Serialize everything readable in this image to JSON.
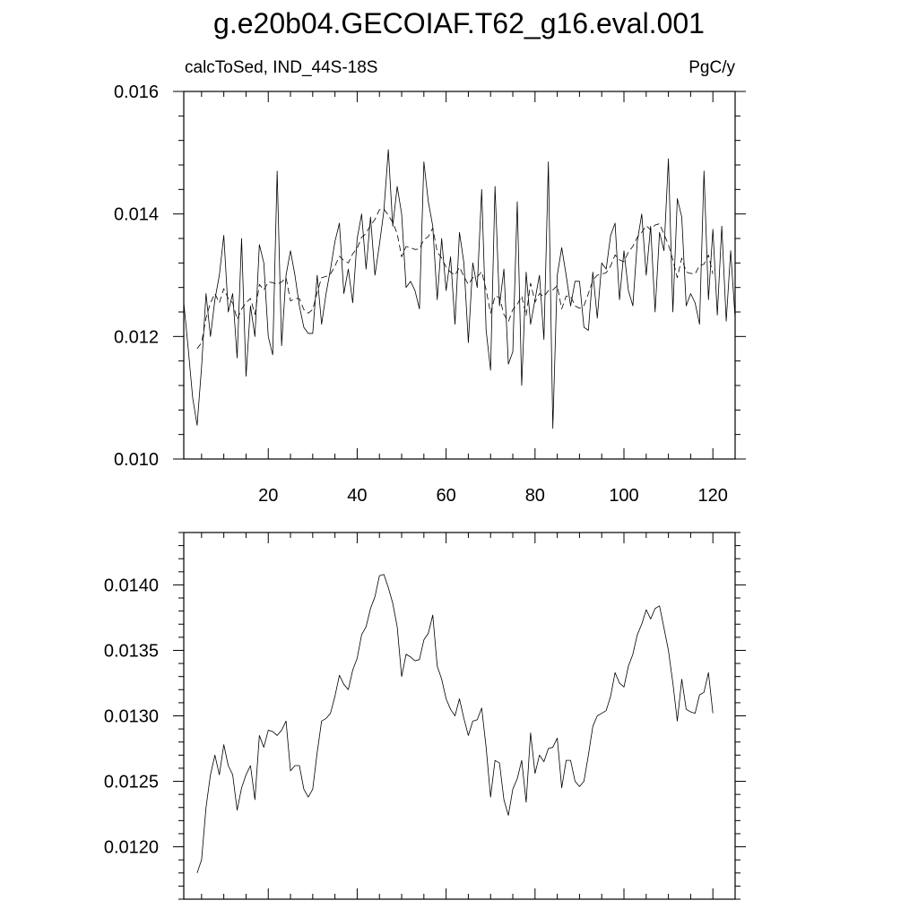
{
  "title": "g.e20b04.GECOIAF.T62_g16.eval.001",
  "subtitle_left": "calcToSed, IND_44S-18S",
  "subtitle_right": "PgC/y",
  "chart_data": [
    {
      "type": "line",
      "xlim": [
        1,
        125
      ],
      "ylim": [
        0.01,
        0.016
      ],
      "x_ticks": [
        20,
        40,
        60,
        80,
        100,
        120
      ],
      "x_tick_labels": [
        "20",
        "40",
        "60",
        "80",
        "100",
        "120"
      ],
      "y_ticks": [
        0.01,
        0.012,
        0.014,
        0.016
      ],
      "y_tick_labels": [
        "0.010",
        "0.012",
        "0.014",
        "0.016"
      ],
      "grid": false,
      "series": [
        {
          "style": "solid",
          "x_start": 1,
          "values": [
            0.01255,
            0.0118,
            0.011,
            0.01055,
            0.0115,
            0.0127,
            0.012,
            0.0126,
            0.013,
            0.01365,
            0.0124,
            0.0127,
            0.01165,
            0.0136,
            0.01135,
            0.0125,
            0.012,
            0.0135,
            0.0132,
            0.012,
            0.0117,
            0.0147,
            0.01185,
            0.013,
            0.0134,
            0.013,
            0.0125,
            0.01215,
            0.01205,
            0.01205,
            0.013,
            0.0122,
            0.0127,
            0.0131,
            0.01355,
            0.01385,
            0.0127,
            0.0131,
            0.01255,
            0.0136,
            0.014,
            0.0131,
            0.01395,
            0.013,
            0.0135,
            0.01405,
            0.01505,
            0.0138,
            0.01445,
            0.014,
            0.0128,
            0.0129,
            0.01275,
            0.01245,
            0.01485,
            0.0142,
            0.0138,
            0.0126,
            0.0136,
            0.01275,
            0.0133,
            0.0122,
            0.0137,
            0.0132,
            0.0119,
            0.0132,
            0.0128,
            0.0144,
            0.0121,
            0.01145,
            0.01445,
            0.0125,
            0.0131,
            0.01155,
            0.01175,
            0.0142,
            0.0112,
            0.01305,
            0.0122,
            0.0126,
            0.013,
            0.01195,
            0.01485,
            0.0105,
            0.013,
            0.01345,
            0.013,
            0.0125,
            0.0129,
            0.0129,
            0.01215,
            0.0121,
            0.01305,
            0.0123,
            0.0132,
            0.0131,
            0.01365,
            0.01385,
            0.0126,
            0.0134,
            0.01275,
            0.0125,
            0.01355,
            0.014,
            0.013,
            0.0138,
            0.0124,
            0.0137,
            0.0134,
            0.0149,
            0.0124,
            0.01425,
            0.01395,
            0.0125,
            0.0127,
            0.01255,
            0.0122,
            0.0147,
            0.0126,
            0.01375,
            0.01235,
            0.0138,
            0.01225,
            0.0134,
            0.0123
          ]
        },
        {
          "style": "dashed",
          "x_start": 4,
          "values": [
            0.0118,
            0.0119,
            0.0123,
            0.01255,
            0.0127,
            0.01255,
            0.01278,
            0.01262,
            0.01255,
            0.01228,
            0.01245,
            0.01255,
            0.01262,
            0.01236,
            0.01285,
            0.01276,
            0.01289,
            0.01288,
            0.01285,
            0.01289,
            0.01296,
            0.01258,
            0.01262,
            0.01262,
            0.01244,
            0.01238,
            0.01244,
            0.01272,
            0.01296,
            0.01298,
            0.01302,
            0.01315,
            0.01331,
            0.01324,
            0.0132,
            0.01335,
            0.01344,
            0.01362,
            0.01368,
            0.01382,
            0.01391,
            0.01407,
            0.01408,
            0.01398,
            0.01386,
            0.01368,
            0.0133,
            0.01347,
            0.01345,
            0.01342,
            0.01343,
            0.01358,
            0.01363,
            0.01377,
            0.01338,
            0.01328,
            0.01313,
            0.01305,
            0.013,
            0.01313,
            0.01298,
            0.01285,
            0.01296,
            0.01297,
            0.01306,
            0.01276,
            0.01238,
            0.01266,
            0.01264,
            0.01236,
            0.01224,
            0.01244,
            0.01252,
            0.01266,
            0.01234,
            0.01287,
            0.01256,
            0.0127,
            0.01265,
            0.01275,
            0.01276,
            0.01283,
            0.01245,
            0.01266,
            0.01266,
            0.0125,
            0.01246,
            0.0125,
            0.0127,
            0.01292,
            0.013,
            0.01302,
            0.01304,
            0.01315,
            0.01333,
            0.01325,
            0.01322,
            0.01338,
            0.01347,
            0.01362,
            0.0137,
            0.01381,
            0.01374,
            0.01382,
            0.01384,
            0.01367,
            0.0135,
            0.01325,
            0.01296,
            0.01328,
            0.01305,
            0.01303,
            0.01302,
            0.01316,
            0.01318,
            0.01333,
            0.01302
          ]
        }
      ]
    },
    {
      "type": "line",
      "xlim": [
        1,
        125
      ],
      "ylim": [
        0.0116,
        0.0144
      ],
      "y_ticks": [
        0.012,
        0.0125,
        0.013,
        0.0135,
        0.014
      ],
      "y_tick_labels": [
        "0.0120",
        "0.0125",
        "0.0130",
        "0.0135",
        "0.0140"
      ],
      "grid": false,
      "series": [
        {
          "style": "solid",
          "x_start": 4,
          "values": [
            0.0118,
            0.0119,
            0.0123,
            0.01255,
            0.0127,
            0.01255,
            0.01278,
            0.01262,
            0.01255,
            0.01228,
            0.01245,
            0.01255,
            0.01262,
            0.01236,
            0.01285,
            0.01276,
            0.01289,
            0.01288,
            0.01285,
            0.01289,
            0.01296,
            0.01258,
            0.01262,
            0.01262,
            0.01244,
            0.01238,
            0.01244,
            0.01272,
            0.01296,
            0.01298,
            0.01302,
            0.01315,
            0.01331,
            0.01324,
            0.0132,
            0.01335,
            0.01344,
            0.01362,
            0.01368,
            0.01382,
            0.01391,
            0.01407,
            0.01408,
            0.01398,
            0.01386,
            0.01368,
            0.0133,
            0.01347,
            0.01345,
            0.01342,
            0.01343,
            0.01358,
            0.01363,
            0.01377,
            0.01338,
            0.01328,
            0.01313,
            0.01305,
            0.013,
            0.01313,
            0.01298,
            0.01285,
            0.01296,
            0.01297,
            0.01306,
            0.01276,
            0.01238,
            0.01266,
            0.01264,
            0.01236,
            0.01224,
            0.01244,
            0.01252,
            0.01266,
            0.01234,
            0.01287,
            0.01256,
            0.0127,
            0.01265,
            0.01275,
            0.01276,
            0.01283,
            0.01245,
            0.01266,
            0.01266,
            0.0125,
            0.01246,
            0.0125,
            0.0127,
            0.01292,
            0.013,
            0.01302,
            0.01304,
            0.01315,
            0.01333,
            0.01325,
            0.01322,
            0.01338,
            0.01347,
            0.01362,
            0.0137,
            0.01381,
            0.01374,
            0.01382,
            0.01384,
            0.01367,
            0.0135,
            0.01325,
            0.01296,
            0.01328,
            0.01305,
            0.01303,
            0.01302,
            0.01316,
            0.01318,
            0.01333,
            0.01302
          ]
        }
      ]
    }
  ]
}
